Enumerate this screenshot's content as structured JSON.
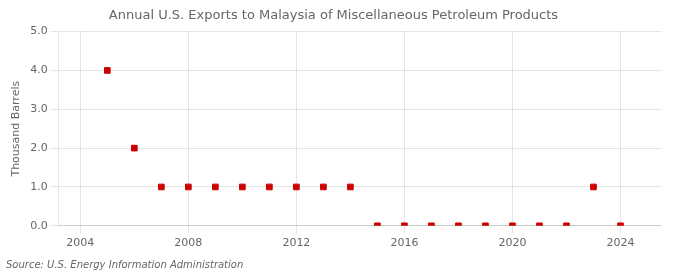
{
  "chart_data": {
    "type": "scatter",
    "title": "Annual U.S. Exports to Malaysia of Miscellaneous Petroleum Products",
    "ylabel": "Thousand Barrels",
    "annotation": "Source: U.S. Energy Information Administration",
    "x": [
      2005,
      2006,
      2007,
      2008,
      2009,
      2010,
      2011,
      2012,
      2013,
      2014,
      2015,
      2016,
      2017,
      2018,
      2019,
      2020,
      2021,
      2022,
      2023,
      2024
    ],
    "values": [
      4.0,
      2.0,
      1.0,
      1.0,
      1.0,
      1.0,
      1.0,
      1.0,
      1.0,
      1.0,
      0.0,
      0.0,
      0.0,
      0.0,
      0.0,
      0.0,
      0.0,
      0.0,
      1.0,
      0.0
    ],
    "color": "#cc0000",
    "marker": "square",
    "xlim": [
      2003.2,
      2025.5
    ],
    "ylim": [
      0.0,
      5.0
    ],
    "xticks": [
      2004,
      2008,
      2012,
      2016,
      2020,
      2024
    ],
    "yticks": [
      {
        "value": 0.0,
        "label": "0.0"
      },
      {
        "value": 1.0,
        "label": "1.0"
      },
      {
        "value": 2.0,
        "label": "2.0"
      },
      {
        "value": 3.0,
        "label": "3.0"
      },
      {
        "value": 4.0,
        "label": "4.0"
      },
      {
        "value": 5.0,
        "label": "5.0"
      }
    ],
    "grid": true
  }
}
